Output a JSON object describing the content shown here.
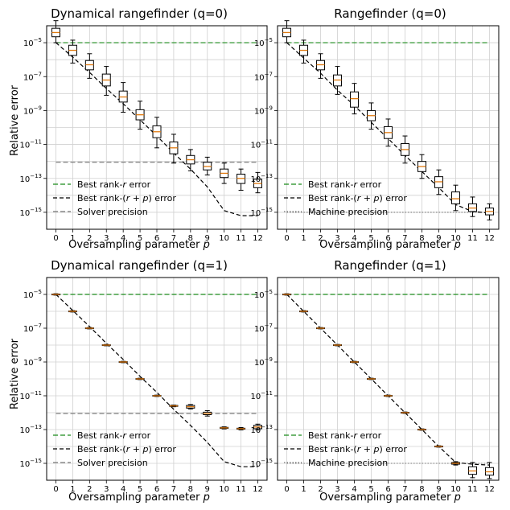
{
  "colors": {
    "best_rank_r": "#1a8a1a",
    "best_rank_rp": "#000000",
    "solver_precision": "#777777",
    "machine_precision": "#777777",
    "box_median": "#e07a10",
    "grid": "#d0d0d0"
  },
  "chart_data": [
    {
      "type": "box",
      "title": "Dynamical rangefinder (q=0)",
      "xlabel": "Oversampling parameter p",
      "ylabel": "Relative error",
      "yscale": "log",
      "ylim_exp": [
        -16,
        -4
      ],
      "categories": [
        "0",
        "1",
        "2",
        "3",
        "4",
        "5",
        "6",
        "7",
        "8",
        "9",
        "10",
        "11",
        "12"
      ],
      "y_ticks": [
        "10^-5",
        "10^-7",
        "10^-9",
        "10^-11",
        "10^-13",
        "10^-15"
      ],
      "medians_exp": [
        -4.4,
        -5.45,
        -6.3,
        -7.2,
        -8.2,
        -9.25,
        -10.25,
        -11.2,
        -11.9,
        -12.3,
        -12.7,
        -13.0,
        -13.3
      ],
      "q1_exp": [
        -4.65,
        -5.75,
        -6.6,
        -7.55,
        -8.5,
        -9.55,
        -10.6,
        -11.55,
        -12.15,
        -12.5,
        -12.95,
        -13.3,
        -13.55
      ],
      "q3_exp": [
        -4.15,
        -5.15,
        -6.05,
        -6.85,
        -7.85,
        -8.95,
        -9.9,
        -10.85,
        -11.65,
        -12.05,
        -12.45,
        -12.75,
        -13.05
      ],
      "wlo_exp": [
        -5.0,
        -6.2,
        -7.1,
        -8.1,
        -9.1,
        -10.1,
        -11.2,
        -12.1,
        -12.55,
        -12.8,
        -13.3,
        -13.7,
        -13.85
      ],
      "whi_exp": [
        -3.7,
        -4.85,
        -5.65,
        -6.4,
        -7.35,
        -8.45,
        -9.4,
        -10.4,
        -11.3,
        -11.75,
        -12.1,
        -12.45,
        -12.65
      ],
      "best_rank_r_exp": -5.0,
      "best_rank_rp_exp": [
        -5.0,
        -5.85,
        -6.75,
        -7.7,
        -8.6,
        -9.55,
        -10.5,
        -11.5,
        -12.45,
        -13.5,
        -14.9,
        -15.2,
        -15.2
      ],
      "reference_exp": -12.05,
      "legend": [
        "Best rank-r error",
        "Best rank-(r + p) error",
        "Solver precision"
      ],
      "legend_placement": "lower-left"
    },
    {
      "type": "box",
      "title": "Rangefinder (q=0)",
      "xlabel": "Oversampling parameter p",
      "ylabel": "",
      "yscale": "log",
      "ylim_exp": [
        -16,
        -4
      ],
      "categories": [
        "0",
        "1",
        "2",
        "3",
        "4",
        "5",
        "6",
        "7",
        "8",
        "9",
        "10",
        "11",
        "12"
      ],
      "y_ticks": [
        "10^-5",
        "10^-7",
        "10^-9",
        "10^-11",
        "10^-13",
        "10^-15"
      ],
      "medians_exp": [
        -4.4,
        -5.45,
        -6.3,
        -7.2,
        -8.3,
        -9.3,
        -10.3,
        -11.3,
        -12.3,
        -13.2,
        -14.2,
        -14.75,
        -14.95
      ],
      "q1_exp": [
        -4.65,
        -5.75,
        -6.6,
        -7.55,
        -8.8,
        -9.6,
        -10.65,
        -11.65,
        -12.6,
        -13.55,
        -14.5,
        -14.95,
        -15.15
      ],
      "q3_exp": [
        -4.15,
        -5.15,
        -6.05,
        -6.9,
        -7.9,
        -9.0,
        -9.95,
        -10.95,
        -12.0,
        -12.9,
        -13.8,
        -14.5,
        -14.75
      ],
      "wlo_exp": [
        -5.0,
        -6.2,
        -7.1,
        -8.05,
        -9.2,
        -10.1,
        -11.1,
        -12.1,
        -13.0,
        -13.95,
        -14.9,
        -15.25,
        -15.45
      ],
      "whi_exp": [
        -3.7,
        -4.85,
        -5.65,
        -6.4,
        -7.4,
        -8.55,
        -9.5,
        -10.5,
        -11.6,
        -12.5,
        -13.4,
        -14.1,
        -14.5
      ],
      "best_rank_r_exp": -5.0,
      "best_rank_rp_exp": [
        -5.0,
        -5.9,
        -6.8,
        -7.8,
        -8.7,
        -9.7,
        -10.65,
        -11.65,
        -12.6,
        -13.55,
        -14.55,
        -14.95,
        -15.05
      ],
      "reference_exp": -15.0,
      "legend": [
        "Best rank-r error",
        "Best rank-(r + p) error",
        "Machine precision"
      ],
      "legend_placement": "lower-left"
    },
    {
      "type": "box",
      "title": "Dynamical rangefinder (q=1)",
      "xlabel": "Oversampling parameter p",
      "ylabel": "Relative error",
      "yscale": "log",
      "ylim_exp": [
        -16,
        -4
      ],
      "categories": [
        "0",
        "1",
        "2",
        "3",
        "4",
        "5",
        "6",
        "7",
        "8",
        "9",
        "10",
        "11",
        "12"
      ],
      "y_ticks": [
        "10^-5",
        "10^-7",
        "10^-9",
        "10^-11",
        "10^-13",
        "10^-15"
      ],
      "medians_exp": [
        -5.0,
        -6.0,
        -7.0,
        -8.0,
        -9.0,
        -10.0,
        -11.0,
        -11.6,
        -11.65,
        -12.05,
        -12.9,
        -12.95,
        -12.85
      ],
      "q1_exp": [
        -5.02,
        -6.02,
        -7.02,
        -8.02,
        -9.02,
        -10.02,
        -11.02,
        -11.63,
        -11.73,
        -12.12,
        -12.93,
        -12.98,
        -12.95
      ],
      "q3_exp": [
        -4.98,
        -5.98,
        -6.98,
        -7.98,
        -8.98,
        -9.98,
        -10.98,
        -11.57,
        -11.57,
        -11.97,
        -12.87,
        -12.92,
        -12.75
      ],
      "wlo_exp": [
        -5.04,
        -6.04,
        -7.04,
        -8.04,
        -9.04,
        -10.04,
        -11.04,
        -11.65,
        -11.78,
        -12.2,
        -12.96,
        -13.02,
        -13.02
      ],
      "whi_exp": [
        -4.96,
        -5.96,
        -6.96,
        -7.96,
        -8.96,
        -9.96,
        -10.96,
        -11.55,
        -11.52,
        -11.88,
        -12.84,
        -12.88,
        -12.68
      ],
      "best_rank_r_exp": -5.0,
      "best_rank_rp_exp": [
        -5.0,
        -5.95,
        -6.9,
        -7.9,
        -8.85,
        -9.85,
        -10.8,
        -11.8,
        -12.75,
        -13.75,
        -14.9,
        -15.2,
        -15.2
      ],
      "reference_exp": -12.05,
      "legend": [
        "Best rank-r error",
        "Best rank-(r + p) error",
        "Solver precision"
      ],
      "legend_placement": "lower-left"
    },
    {
      "type": "box",
      "title": "Rangefinder (q=1)",
      "xlabel": "Oversampling parameter p",
      "ylabel": "",
      "yscale": "log",
      "ylim_exp": [
        -16,
        -4
      ],
      "categories": [
        "0",
        "1",
        "2",
        "3",
        "4",
        "5",
        "6",
        "7",
        "8",
        "9",
        "10",
        "11",
        "12"
      ],
      "y_ticks": [
        "10^-5",
        "10^-7",
        "10^-9",
        "10^-11",
        "10^-13",
        "10^-15"
      ],
      "medians_exp": [
        -5.0,
        -6.0,
        -7.0,
        -8.0,
        -9.0,
        -10.0,
        -11.0,
        -12.0,
        -13.0,
        -14.0,
        -15.0,
        -15.45,
        -15.5
      ],
      "q1_exp": [
        -5.02,
        -6.02,
        -7.02,
        -8.02,
        -9.02,
        -10.02,
        -11.02,
        -12.02,
        -13.02,
        -14.02,
        -15.05,
        -15.65,
        -15.7
      ],
      "q3_exp": [
        -4.98,
        -5.98,
        -6.98,
        -7.98,
        -8.98,
        -9.98,
        -10.98,
        -11.98,
        -12.98,
        -13.98,
        -14.95,
        -15.2,
        -15.25
      ],
      "wlo_exp": [
        -5.04,
        -6.04,
        -7.04,
        -8.04,
        -9.04,
        -10.04,
        -11.04,
        -12.04,
        -13.04,
        -14.04,
        -15.1,
        -15.85,
        -15.9
      ],
      "whi_exp": [
        -4.96,
        -5.96,
        -6.96,
        -7.96,
        -8.96,
        -9.96,
        -10.96,
        -11.96,
        -12.96,
        -13.96,
        -14.9,
        -14.95,
        -14.95
      ],
      "best_rank_r_exp": -5.0,
      "best_rank_rp_exp": [
        -5.0,
        -6.0,
        -7.0,
        -8.0,
        -9.0,
        -10.0,
        -11.0,
        -12.0,
        -13.0,
        -14.0,
        -14.95,
        -15.05,
        -15.1
      ],
      "reference_exp": -15.0,
      "legend": [
        "Best rank-r error",
        "Best rank-(r + p) error",
        "Machine precision"
      ],
      "legend_placement": "lower-left"
    }
  ]
}
